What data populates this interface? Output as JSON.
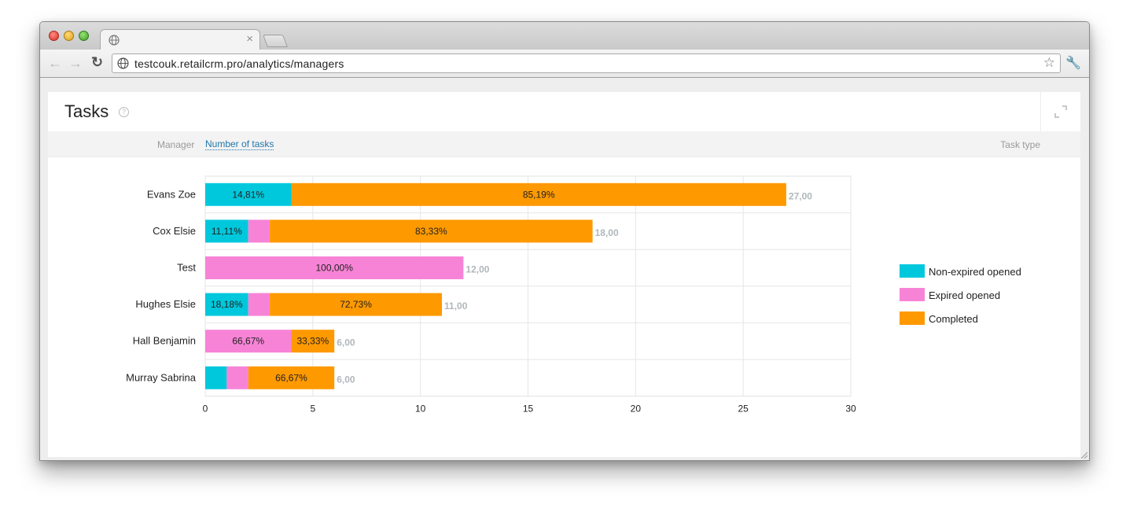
{
  "browser": {
    "url": "testcouk.retailcrm.pro/analytics/managers",
    "tab_close": "×",
    "icons": [
      "globe-icon",
      "back-arrow-icon",
      "forward-arrow-icon",
      "reload-icon",
      "star-icon",
      "wrench-icon",
      "expand-icon",
      "help-icon"
    ]
  },
  "panel": {
    "title": "Tasks",
    "help": "?"
  },
  "filters": {
    "manager_label": "Manager",
    "metric_link": "Number of tasks",
    "type_label": "Task type"
  },
  "colors": {
    "non_expired": "#00c8dc",
    "expired": "#f783d6",
    "completed": "#ff9900",
    "total_label": "#b0b7bb",
    "link": "#2277aa"
  },
  "chart_data": {
    "type": "bar",
    "orientation": "horizontal",
    "stacked": true,
    "categories": [
      "Evans Zoe",
      "Cox Elsie",
      "Test",
      "Hughes Elsie",
      "Hall Benjamin",
      "Murray Sabrina"
    ],
    "series": [
      {
        "name": "Non-expired opened",
        "values": [
          4,
          2,
          0,
          2,
          0,
          1
        ],
        "labels": [
          "14,81%",
          "11,11%",
          "",
          "18,18%",
          "",
          ""
        ]
      },
      {
        "name": "Expired opened",
        "values": [
          0,
          1,
          12,
          1,
          4,
          1
        ],
        "labels": [
          "",
          "",
          "100,00%",
          "",
          "66,67%",
          ""
        ]
      },
      {
        "name": "Completed",
        "values": [
          23,
          15,
          0,
          8,
          2,
          4
        ],
        "labels": [
          "85,19%",
          "83,33%",
          "",
          "72,73%",
          "33,33%",
          "66,67%"
        ]
      }
    ],
    "totals": [
      "27,00",
      "18,00",
      "12,00",
      "11,00",
      "6,00",
      "6,00"
    ],
    "xlim": [
      0,
      30
    ],
    "xticks": [
      "0",
      "5",
      "10",
      "15",
      "20",
      "25",
      "30"
    ],
    "grid": true,
    "legend_position": "right"
  }
}
